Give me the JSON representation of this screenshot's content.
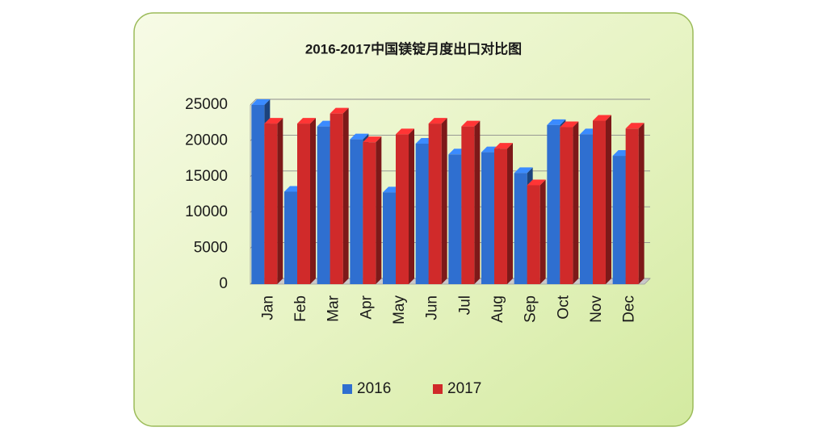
{
  "chart_data": {
    "type": "bar",
    "title": "2016-2017中国镁锭月度出口对比图",
    "categories": [
      "Jan",
      "Feb",
      "Mar",
      "Apr",
      "May",
      "Jun",
      "Jul",
      "Aug",
      "Sep",
      "Oct",
      "Nov",
      "Dec"
    ],
    "series": [
      {
        "name": "2016",
        "color": "#2f6fd0",
        "values": [
          25000,
          12900,
          22000,
          20200,
          12800,
          19600,
          18100,
          18400,
          15500,
          22200,
          20900,
          17900
        ]
      },
      {
        "name": "2017",
        "color": "#d02a2a",
        "values": [
          22400,
          22400,
          23800,
          19800,
          20900,
          22400,
          22000,
          18900,
          13800,
          21900,
          22800,
          21700
        ]
      }
    ],
    "ylim": [
      0,
      25000
    ],
    "yticks": [
      0,
      5000,
      10000,
      15000,
      20000,
      25000
    ],
    "grid": true,
    "legend": "bottom"
  }
}
